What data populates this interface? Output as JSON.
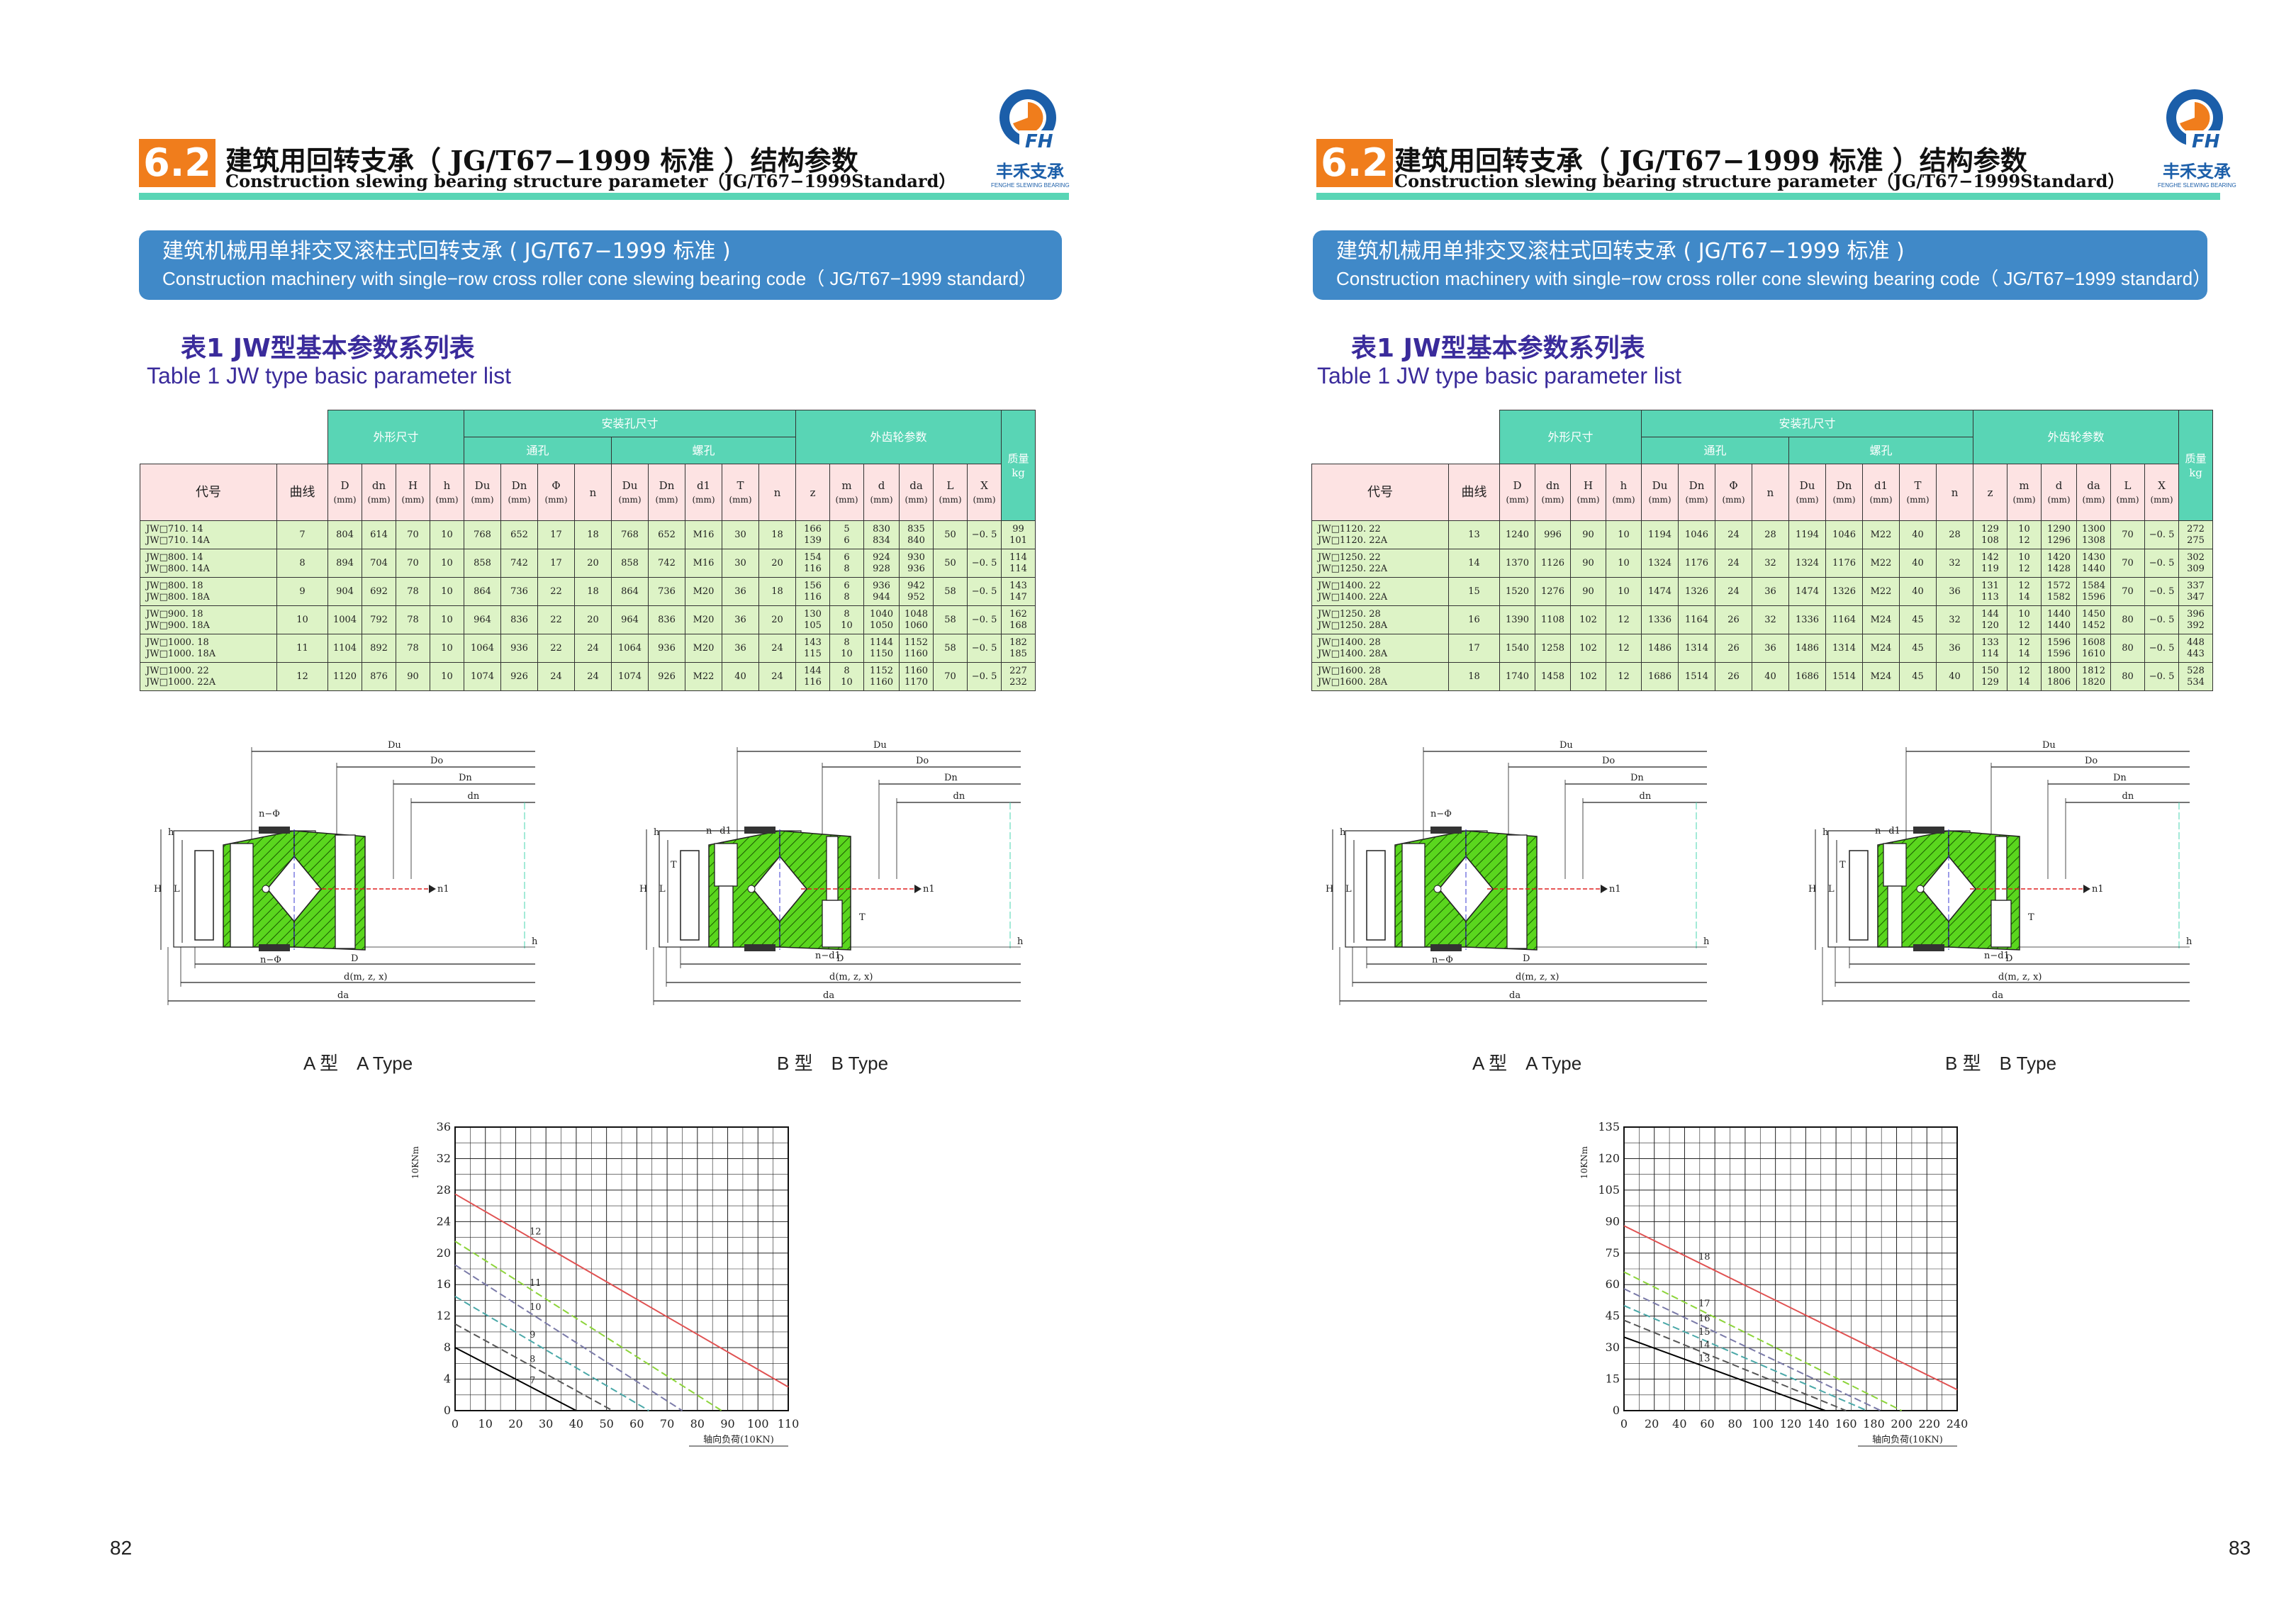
{
  "header": {
    "section": "6.2",
    "title_cn": "建筑用回转支承（ JG/T67−1999 标准 ）结构参数",
    "title_en": "Construction slewing bearing structure parameter（JG/T67−1999Standard）",
    "logo_mark": "FH",
    "logo_cn": "丰禾支承",
    "logo_en": "FENGHE SLEWING BEARING"
  },
  "banner": {
    "cn": "建筑机械用单排交叉滚柱式回转支承 ( JG/T67−1999 标准 )",
    "en": "Construction machinery with single−row cross roller cone slewing bearing code（ JG/T67−1999 standard）"
  },
  "table_title": {
    "cn": "表1 JW型基本参数系列表",
    "en": "Table 1 JW type basic parameter list"
  },
  "table_headers": {
    "outline": "外形尺寸",
    "install": "安装孔尺寸",
    "through": "通孔",
    "thread": "螺孔",
    "gear": "外齿轮参数",
    "weight": "质量",
    "weight_unit": "kg",
    "code": "代号",
    "curve": "曲线",
    "cols": [
      "D",
      "dn",
      "H",
      "h",
      "Du",
      "Dn",
      "Φ",
      "n",
      "Du",
      "Dn",
      "d1",
      "T",
      "n",
      "z",
      "m",
      "d",
      "da",
      "L",
      "X"
    ],
    "units": [
      "(mm)",
      "(mm)",
      "(mm)",
      "(mm)",
      "(mm)",
      "(mm)",
      "(mm)",
      "",
      "(mm)",
      "(mm)",
      "(mm)",
      "(mm)",
      "",
      "",
      "(mm)",
      "(mm)",
      "(mm)",
      "(mm)",
      "(mm)"
    ]
  },
  "left_rows": [
    {
      "code": [
        "JW□710. 14",
        "JW□710. 14A"
      ],
      "curve": "7",
      "D": "804",
      "dn": "614",
      "H": "70",
      "h": "10",
      "Du": "768",
      "Dn": "652",
      "phi": "17",
      "n": "18",
      "Du2": "768",
      "Dn2": "652",
      "d1": "M16",
      "T": "30",
      "n2": "18",
      "z": [
        "166",
        "139"
      ],
      "m": [
        "5",
        "6"
      ],
      "d": [
        "830",
        "834"
      ],
      "da": [
        "835",
        "840"
      ],
      "L": "50",
      "X": "−0. 5",
      "w": [
        "99",
        "101"
      ]
    },
    {
      "code": [
        "JW□800. 14",
        "JW□800. 14A"
      ],
      "curve": "8",
      "D": "894",
      "dn": "704",
      "H": "70",
      "h": "10",
      "Du": "858",
      "Dn": "742",
      "phi": "17",
      "n": "20",
      "Du2": "858",
      "Dn2": "742",
      "d1": "M16",
      "T": "30",
      "n2": "20",
      "z": [
        "154",
        "116"
      ],
      "m": [
        "6",
        "8"
      ],
      "d": [
        "924",
        "928"
      ],
      "da": [
        "930",
        "936"
      ],
      "L": "50",
      "X": "−0. 5",
      "w": [
        "114",
        "114"
      ]
    },
    {
      "code": [
        "JW□800. 18",
        "JW□800. 18A"
      ],
      "curve": "9",
      "D": "904",
      "dn": "692",
      "H": "78",
      "h": "10",
      "Du": "864",
      "Dn": "736",
      "phi": "22",
      "n": "18",
      "Du2": "864",
      "Dn2": "736",
      "d1": "M20",
      "T": "36",
      "n2": "18",
      "z": [
        "156",
        "116"
      ],
      "m": [
        "6",
        "8"
      ],
      "d": [
        "936",
        "944"
      ],
      "da": [
        "942",
        "952"
      ],
      "L": "58",
      "X": "−0. 5",
      "w": [
        "143",
        "147"
      ]
    },
    {
      "code": [
        "JW□900. 18",
        "JW□900. 18A"
      ],
      "curve": "10",
      "D": "1004",
      "dn": "792",
      "H": "78",
      "h": "10",
      "Du": "964",
      "Dn": "836",
      "phi": "22",
      "n": "20",
      "Du2": "964",
      "Dn2": "836",
      "d1": "M20",
      "T": "36",
      "n2": "20",
      "z": [
        "130",
        "105"
      ],
      "m": [
        "8",
        "10"
      ],
      "d": [
        "1040",
        "1050"
      ],
      "da": [
        "1048",
        "1060"
      ],
      "L": "58",
      "X": "−0. 5",
      "w": [
        "162",
        "168"
      ]
    },
    {
      "code": [
        "JW□1000. 18",
        "JW□1000. 18A"
      ],
      "curve": "11",
      "D": "1104",
      "dn": "892",
      "H": "78",
      "h": "10",
      "Du": "1064",
      "Dn": "936",
      "phi": "22",
      "n": "24",
      "Du2": "1064",
      "Dn2": "936",
      "d1": "M20",
      "T": "36",
      "n2": "24",
      "z": [
        "143",
        "115"
      ],
      "m": [
        "8",
        "10"
      ],
      "d": [
        "1144",
        "1150"
      ],
      "da": [
        "1152",
        "1160"
      ],
      "L": "58",
      "X": "−0. 5",
      "w": [
        "182",
        "185"
      ]
    },
    {
      "code": [
        "JW□1000. 22",
        "JW□1000. 22A"
      ],
      "curve": "12",
      "D": "1120",
      "dn": "876",
      "H": "90",
      "h": "10",
      "Du": "1074",
      "Dn": "926",
      "phi": "24",
      "n": "24",
      "Du2": "1074",
      "Dn2": "926",
      "d1": "M22",
      "T": "40",
      "n2": "24",
      "z": [
        "144",
        "116"
      ],
      "m": [
        "8",
        "10"
      ],
      "d": [
        "1152",
        "1160"
      ],
      "da": [
        "1160",
        "1170"
      ],
      "L": "70",
      "X": "−0. 5",
      "w": [
        "227",
        "232"
      ]
    }
  ],
  "right_rows": [
    {
      "code": [
        "JW□1120. 22",
        "JW□1120. 22A"
      ],
      "curve": "13",
      "D": "1240",
      "dn": "996",
      "H": "90",
      "h": "10",
      "Du": "1194",
      "Dn": "1046",
      "phi": "24",
      "n": "28",
      "Du2": "1194",
      "Dn2": "1046",
      "d1": "M22",
      "T": "40",
      "n2": "28",
      "z": [
        "129",
        "108"
      ],
      "m": [
        "10",
        "12"
      ],
      "d": [
        "1290",
        "1296"
      ],
      "da": [
        "1300",
        "1308"
      ],
      "L": "70",
      "X": "−0. 5",
      "w": [
        "272",
        "275"
      ]
    },
    {
      "code": [
        "JW□1250. 22",
        "JW□1250. 22A"
      ],
      "curve": "14",
      "D": "1370",
      "dn": "1126",
      "H": "90",
      "h": "10",
      "Du": "1324",
      "Dn": "1176",
      "phi": "24",
      "n": "32",
      "Du2": "1324",
      "Dn2": "1176",
      "d1": "M22",
      "T": "40",
      "n2": "32",
      "z": [
        "142",
        "119"
      ],
      "m": [
        "10",
        "12"
      ],
      "d": [
        "1420",
        "1428"
      ],
      "da": [
        "1430",
        "1440"
      ],
      "L": "70",
      "X": "−0. 5",
      "w": [
        "302",
        "309"
      ]
    },
    {
      "code": [
        "JW□1400. 22",
        "JW□1400. 22A"
      ],
      "curve": "15",
      "D": "1520",
      "dn": "1276",
      "H": "90",
      "h": "10",
      "Du": "1474",
      "Dn": "1326",
      "phi": "24",
      "n": "36",
      "Du2": "1474",
      "Dn2": "1326",
      "d1": "M22",
      "T": "40",
      "n2": "36",
      "z": [
        "131",
        "113"
      ],
      "m": [
        "12",
        "14"
      ],
      "d": [
        "1572",
        "1582"
      ],
      "da": [
        "1584",
        "1596"
      ],
      "L": "70",
      "X": "−0. 5",
      "w": [
        "337",
        "347"
      ]
    },
    {
      "code": [
        "JW□1250. 28",
        "JW□1250. 28A"
      ],
      "curve": "16",
      "D": "1390",
      "dn": "1108",
      "H": "102",
      "h": "12",
      "Du": "1336",
      "Dn": "1164",
      "phi": "26",
      "n": "32",
      "Du2": "1336",
      "Dn2": "1164",
      "d1": "M24",
      "T": "45",
      "n2": "32",
      "z": [
        "144",
        "120"
      ],
      "m": [
        "10",
        "12"
      ],
      "d": [
        "1440",
        "1440"
      ],
      "da": [
        "1450",
        "1452"
      ],
      "L": "80",
      "X": "−0. 5",
      "w": [
        "396",
        "392"
      ]
    },
    {
      "code": [
        "JW□1400. 28",
        "JW□1400. 28A"
      ],
      "curve": "17",
      "D": "1540",
      "dn": "1258",
      "H": "102",
      "h": "12",
      "Du": "1486",
      "Dn": "1314",
      "phi": "26",
      "n": "36",
      "Du2": "1486",
      "Dn2": "1314",
      "d1": "M24",
      "T": "45",
      "n2": "36",
      "z": [
        "133",
        "114"
      ],
      "m": [
        "12",
        "14"
      ],
      "d": [
        "1596",
        "1596"
      ],
      "da": [
        "1608",
        "1610"
      ],
      "L": "80",
      "X": "−0. 5",
      "w": [
        "448",
        "443"
      ]
    },
    {
      "code": [
        "JW□1600. 28",
        "JW□1600. 28A"
      ],
      "curve": "18",
      "D": "1740",
      "dn": "1458",
      "H": "102",
      "h": "12",
      "Du": "1686",
      "Dn": "1514",
      "phi": "26",
      "n": "40",
      "Du2": "1686",
      "Dn2": "1514",
      "d1": "M24",
      "T": "45",
      "n2": "40",
      "z": [
        "150",
        "129"
      ],
      "m": [
        "12",
        "14"
      ],
      "d": [
        "1800",
        "1806"
      ],
      "da": [
        "1812",
        "1820"
      ],
      "L": "80",
      "X": "−0. 5",
      "w": [
        "528",
        "534"
      ]
    }
  ],
  "drawing_labels": {
    "Du": "Du",
    "Do": "Do",
    "Dn": "Dn",
    "dn": "dn",
    "n_phi": "n−Φ",
    "n_d1": "n−d1",
    "n1": "n1",
    "H": "H",
    "L": "L",
    "h": "h",
    "T": "T",
    "D": "D",
    "d_mzx": "d(m, z, x)",
    "da": "da"
  },
  "type_labels": {
    "a": "A 型　A Type",
    "b": "B 型　B Type"
  },
  "chart_data": [
    {
      "type": "line",
      "ylabel": "10KNm",
      "xlabel": "轴向负荷(10KN)",
      "xlim": [
        0,
        110
      ],
      "ylim": [
        0,
        36
      ],
      "x_ticks": [
        "0",
        "10",
        "20",
        "30",
        "40",
        "50",
        "60",
        "70",
        "80",
        "90",
        "100",
        "110"
      ],
      "y_ticks": [
        "0",
        "4",
        "8",
        "12",
        "16",
        "20",
        "24",
        "28",
        "32",
        "36"
      ],
      "series": [
        {
          "name": "12",
          "color": "#e05252",
          "x": [
            0,
            110
          ],
          "y": [
            27.5,
            3
          ]
        },
        {
          "name": "11",
          "color": "#8cd43a",
          "x": [
            0,
            88
          ],
          "y": [
            21.5,
            0
          ]
        },
        {
          "name": "10",
          "color": "#7a7aa8",
          "x": [
            0,
            75
          ],
          "y": [
            18.5,
            0
          ]
        },
        {
          "name": "9",
          "color": "#4aa8a8",
          "x": [
            0,
            64
          ],
          "y": [
            14.5,
            0
          ]
        },
        {
          "name": "8",
          "color": "#555555",
          "x": [
            0,
            52
          ],
          "y": [
            11,
            0
          ]
        },
        {
          "name": "7",
          "color": "#000000",
          "x": [
            0,
            40
          ],
          "y": [
            8,
            0
          ]
        }
      ]
    },
    {
      "type": "line",
      "ylabel": "10KNm",
      "xlabel": "轴向负荷(10KN)",
      "xlim": [
        0,
        240
      ],
      "ylim": [
        0,
        135
      ],
      "x_ticks": [
        "0",
        "20",
        "40",
        "60",
        "80",
        "100",
        "120",
        "140",
        "160",
        "180",
        "200",
        "220",
        "240"
      ],
      "y_ticks": [
        "0",
        "15",
        "30",
        "45",
        "60",
        "75",
        "90",
        "105",
        "120",
        "135"
      ],
      "series": [
        {
          "name": "18",
          "color": "#e05252",
          "x": [
            0,
            240
          ],
          "y": [
            88,
            10
          ]
        },
        {
          "name": "17",
          "color": "#8cd43a",
          "x": [
            0,
            200
          ],
          "y": [
            66,
            0
          ]
        },
        {
          "name": "16",
          "color": "#7a7aa8",
          "x": [
            0,
            185
          ],
          "y": [
            58,
            0
          ]
        },
        {
          "name": "15",
          "color": "#4aa8a8",
          "x": [
            0,
            175
          ],
          "y": [
            50,
            0
          ]
        },
        {
          "name": "14",
          "color": "#555555",
          "x": [
            0,
            160
          ],
          "y": [
            43,
            0
          ]
        },
        {
          "name": "13",
          "color": "#000000",
          "x": [
            0,
            145
          ],
          "y": [
            35,
            0
          ]
        }
      ]
    }
  ],
  "pages": {
    "left": "82",
    "right": "83"
  }
}
